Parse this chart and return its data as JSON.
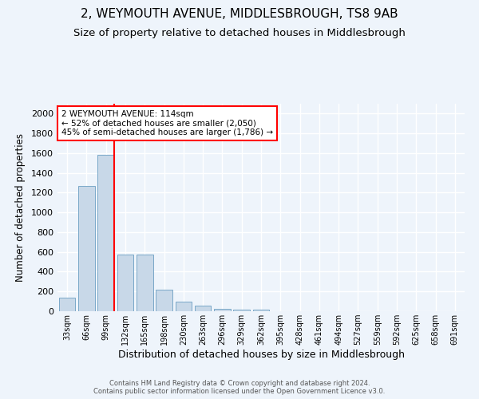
{
  "title": "2, WEYMOUTH AVENUE, MIDDLESBROUGH, TS8 9AB",
  "subtitle": "Size of property relative to detached houses in Middlesbrough",
  "xlabel": "Distribution of detached houses by size in Middlesbrough",
  "ylabel": "Number of detached properties",
  "footer_line1": "Contains HM Land Registry data © Crown copyright and database right 2024.",
  "footer_line2": "Contains public sector information licensed under the Open Government Licence v3.0.",
  "bar_labels": [
    "33sqm",
    "66sqm",
    "99sqm",
    "132sqm",
    "165sqm",
    "198sqm",
    "230sqm",
    "263sqm",
    "296sqm",
    "329sqm",
    "362sqm",
    "395sqm",
    "428sqm",
    "461sqm",
    "494sqm",
    "527sqm",
    "559sqm",
    "592sqm",
    "625sqm",
    "658sqm",
    "691sqm"
  ],
  "bar_values": [
    140,
    1270,
    1580,
    570,
    570,
    220,
    100,
    55,
    25,
    15,
    15,
    0,
    0,
    0,
    0,
    0,
    0,
    0,
    0,
    0,
    0
  ],
  "bar_color": "#c8d8e8",
  "bar_edge_color": "#7aa8c8",
  "highlight_bar_index": 2,
  "annotation_text": "2 WEYMOUTH AVENUE: 114sqm\n← 52% of detached houses are smaller (2,050)\n45% of semi-detached houses are larger (1,786) →",
  "annotation_box_color": "white",
  "annotation_box_edge_color": "red",
  "ylim": [
    0,
    2100
  ],
  "yticks": [
    0,
    200,
    400,
    600,
    800,
    1000,
    1200,
    1400,
    1600,
    1800,
    2000
  ],
  "background_color": "#eef4fb",
  "plot_background_color": "#eef4fb",
  "grid_color": "white",
  "title_fontsize": 11,
  "subtitle_fontsize": 9.5
}
